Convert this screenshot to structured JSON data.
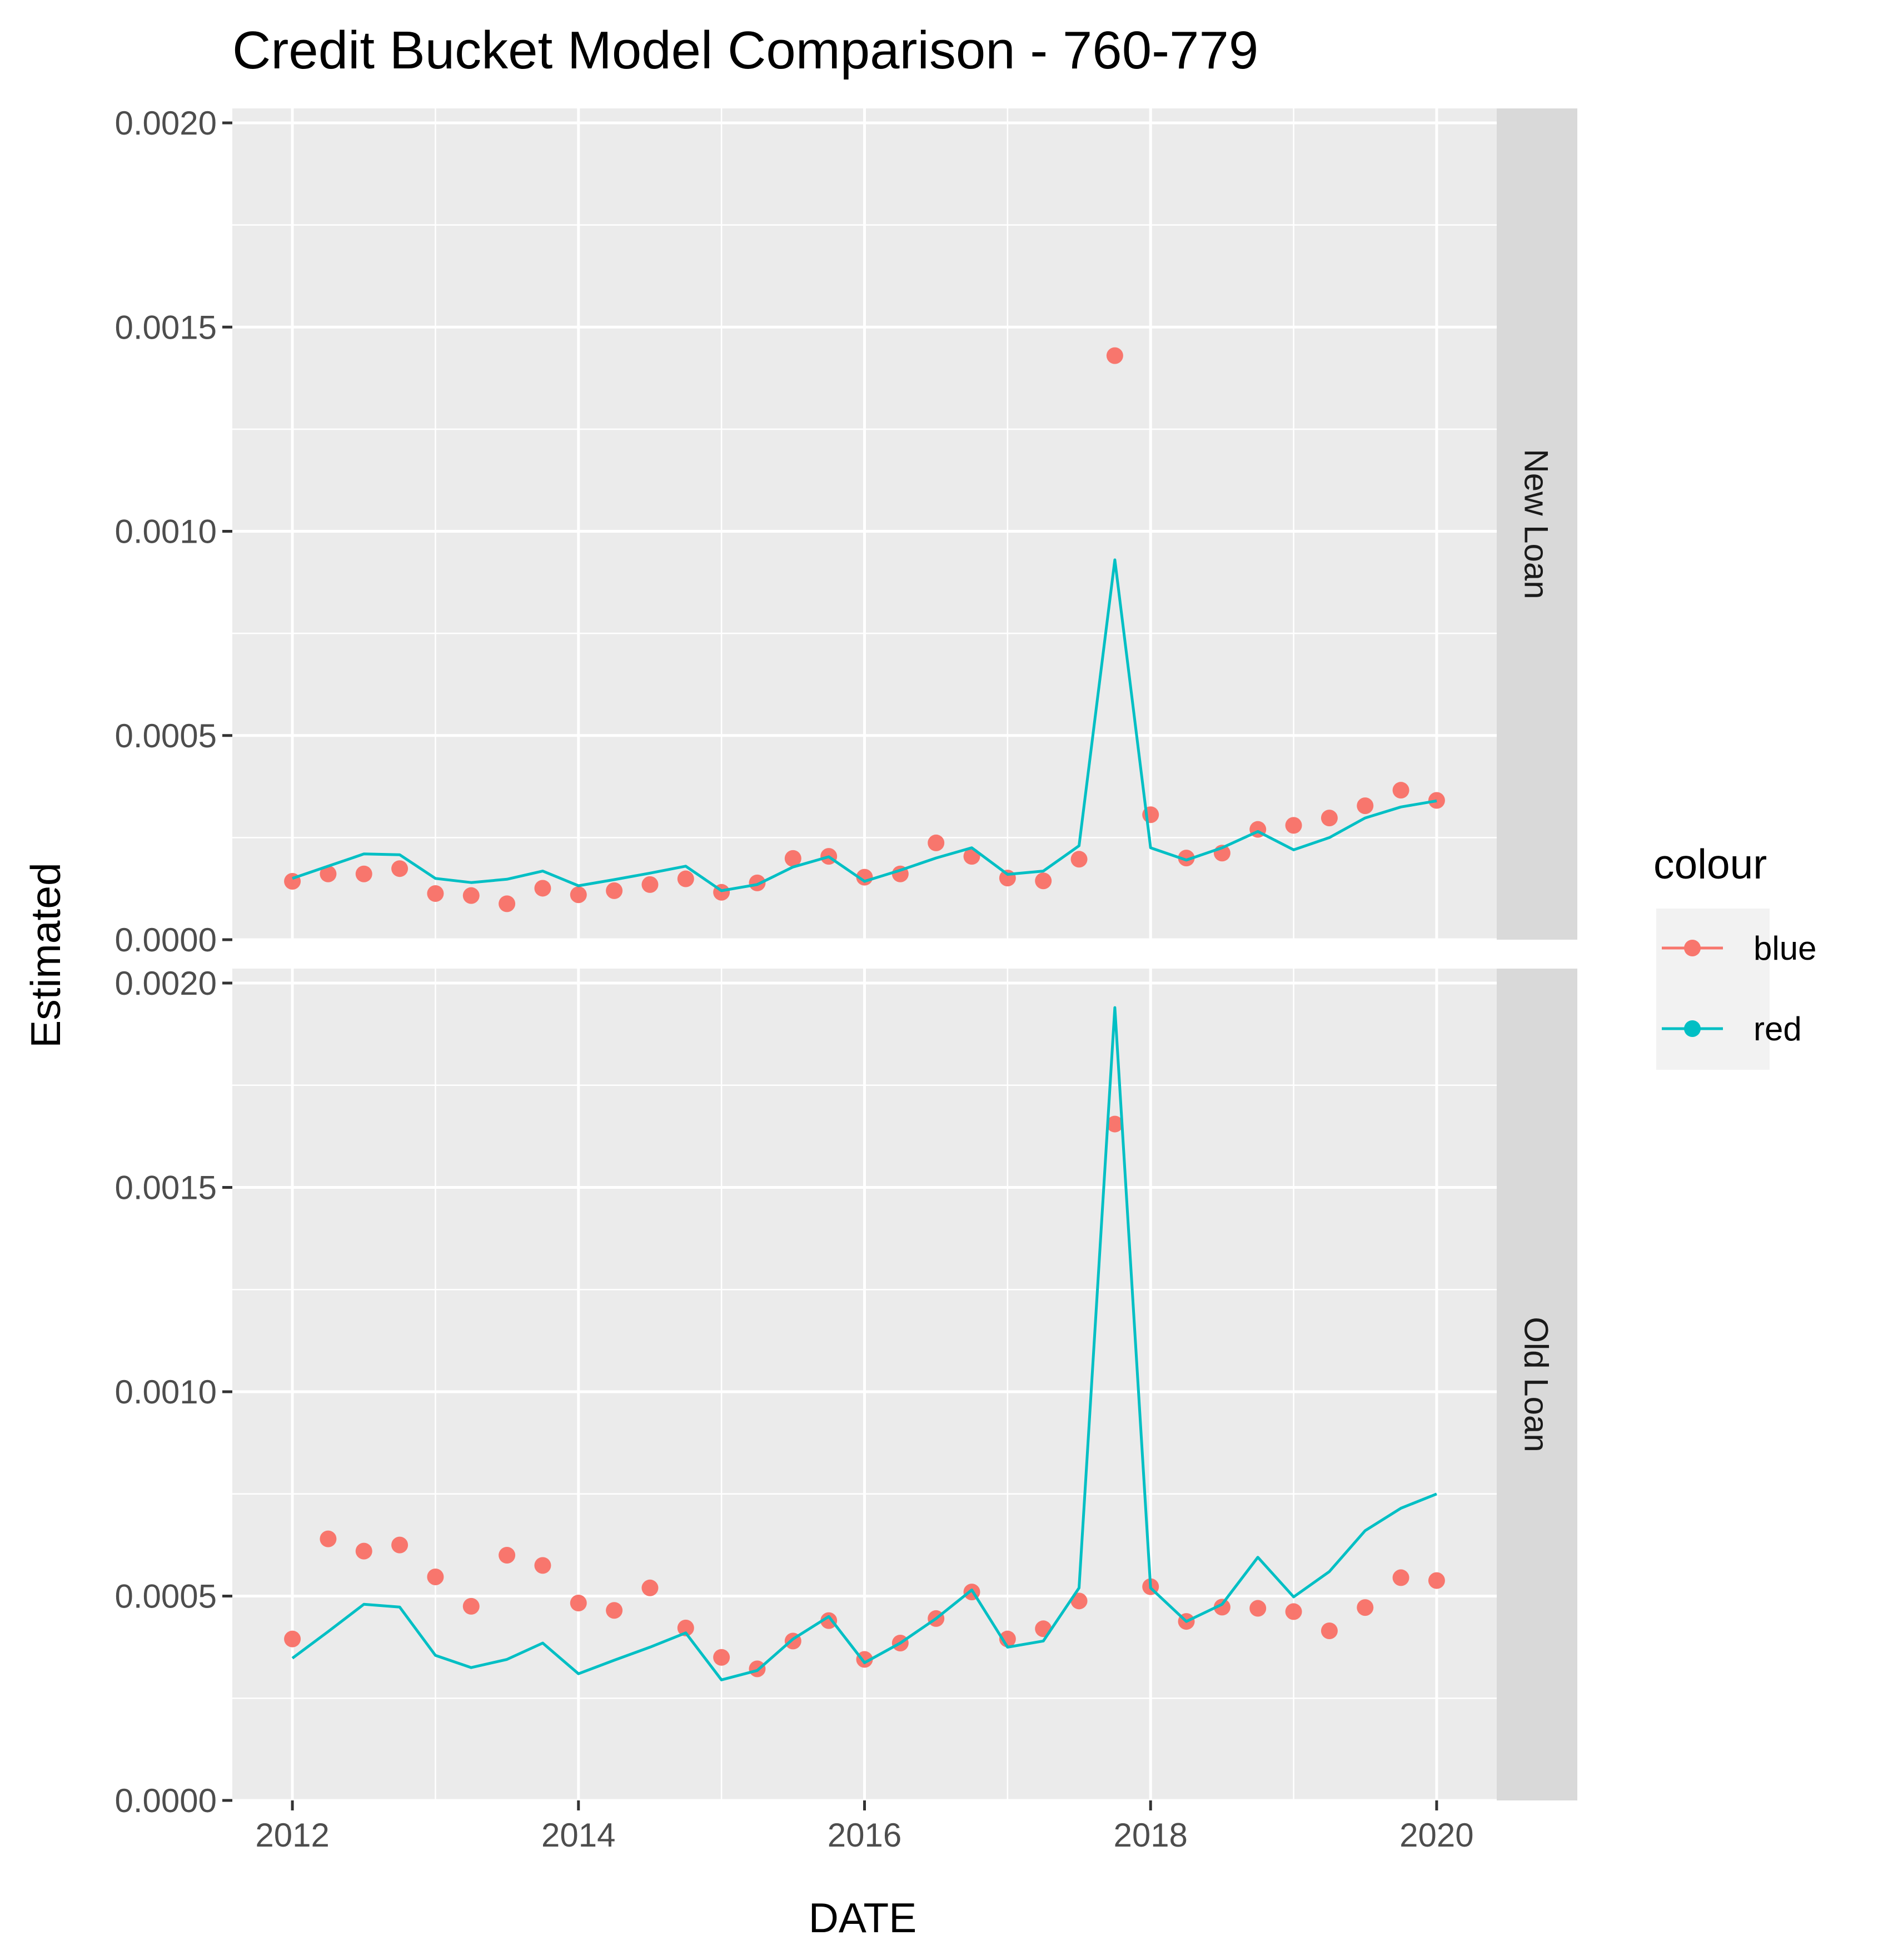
{
  "chart_data": {
    "type": "line",
    "title": "Credit Bucket Model Comparison - 760-779",
    "xlabel": "DATE",
    "ylabel": "Estimated",
    "xlim": [
      2011.58,
      2020.42
    ],
    "ylim": [
      0,
      0.002
    ],
    "x_ticks": [
      2012,
      2014,
      2016,
      2018,
      2020
    ],
    "x_tick_labels": [
      "2012",
      "2014",
      "2016",
      "2018",
      "2020"
    ],
    "y_ticks": [
      0,
      0.0005,
      0.001,
      0.0015,
      0.002
    ],
    "y_tick_labels": [
      "0.0000",
      "0.0005",
      "0.0010",
      "0.0015",
      "0.0020"
    ],
    "grid": true,
    "legend": {
      "title": "colour",
      "position": "right",
      "entries": [
        {
          "label": "blue",
          "color": "#F8766D"
        },
        {
          "label": "red",
          "color": "#00BFC4"
        }
      ]
    },
    "x": [
      2012.0,
      2012.25,
      2012.5,
      2012.75,
      2013.0,
      2013.25,
      2013.5,
      2013.75,
      2014.0,
      2014.25,
      2014.5,
      2014.75,
      2015.0,
      2015.25,
      2015.5,
      2015.75,
      2016.0,
      2016.25,
      2016.5,
      2016.75,
      2017.0,
      2017.25,
      2017.5,
      2017.75,
      2018.0,
      2018.25,
      2018.5,
      2018.75,
      2019.0,
      2019.25,
      2019.5,
      2019.75,
      2020.0
    ],
    "panels": [
      {
        "label": "New Loan",
        "series": [
          {
            "name": "blue",
            "color": "#F8766D",
            "style": "points",
            "values": [
              0.000143,
              0.000161,
              0.000161,
              0.000174,
              0.000113,
              0.000108,
              8.8e-05,
              0.000126,
              0.00011,
              0.00012,
              0.000135,
              0.000149,
              0.000116,
              0.000139,
              0.000199,
              0.000204,
              0.000153,
              0.000161,
              0.000237,
              0.000204,
              0.000151,
              0.000144,
              0.000197,
              0.00143,
              0.000306,
              0.0002,
              0.000212,
              0.00027,
              0.00028,
              0.000298,
              0.000328,
              0.000366,
              0.000341
            ]
          },
          {
            "name": "red",
            "color": "#00BFC4",
            "style": "line",
            "values": [
              0.00015,
              0.00018,
              0.00021,
              0.000208,
              0.00015,
              0.00014,
              0.000148,
              0.000168,
              0.000132,
              0.000147,
              0.000163,
              0.00018,
              0.00012,
              0.000135,
              0.000178,
              0.000203,
              0.000143,
              0.00017,
              0.0002,
              0.000225,
              0.00016,
              0.000168,
              0.00023,
              0.00093,
              0.000225,
              0.000195,
              0.000225,
              0.000265,
              0.00022,
              0.00025,
              0.000298,
              0.000325,
              0.00034
            ]
          }
        ]
      },
      {
        "label": "Old Loan",
        "series": [
          {
            "name": "blue",
            "color": "#F8766D",
            "style": "points",
            "values": [
              0.000395,
              0.00064,
              0.00061,
              0.000625,
              0.000547,
              0.000475,
              0.0006,
              0.000575,
              0.000483,
              0.000465,
              0.00052,
              0.000422,
              0.00035,
              0.000322,
              0.00039,
              0.00044,
              0.000345,
              0.000385,
              0.000445,
              0.00051,
              0.000395,
              0.00042,
              0.000488,
              0.001655,
              0.000523,
              0.000438,
              0.000473,
              0.00047,
              0.000462,
              0.000415,
              0.000472,
              0.000545,
              0.000538
            ]
          },
          {
            "name": "red",
            "color": "#00BFC4",
            "style": "line",
            "values": [
              0.000348,
              0.000413,
              0.00048,
              0.000473,
              0.000355,
              0.000325,
              0.000345,
              0.000385,
              0.00031,
              0.000343,
              0.000375,
              0.00041,
              0.000295,
              0.000318,
              0.000395,
              0.00045,
              0.000337,
              0.000385,
              0.000445,
              0.000515,
              0.000375,
              0.00039,
              0.00052,
              0.00194,
              0.00052,
              0.000438,
              0.00048,
              0.000595,
              0.000498,
              0.00056,
              0.00066,
              0.000715,
              0.00075
            ]
          }
        ]
      }
    ]
  }
}
